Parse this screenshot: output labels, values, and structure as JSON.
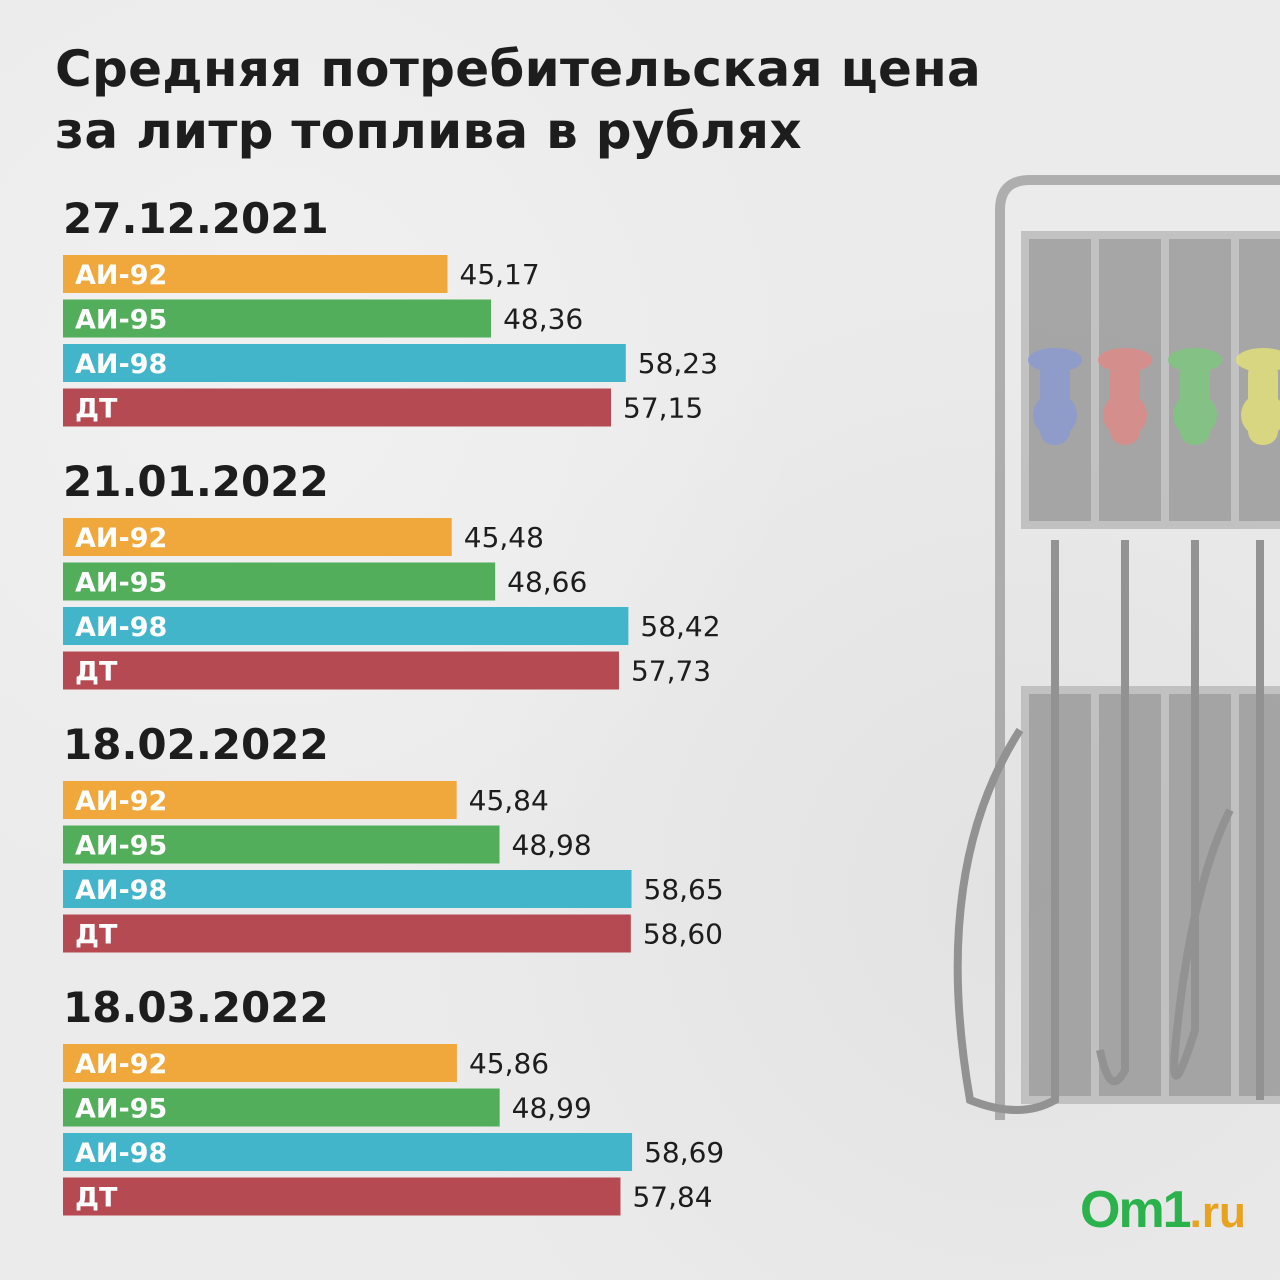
{
  "title_lines": [
    "Средняя потребительская цена",
    "за литр топлива в рублях"
  ],
  "logo": {
    "main": "Om1",
    "suffix": ".ru"
  },
  "colors": {
    "AI-92": "#f0a83c",
    "AI-95": "#52ae5a",
    "AI-98": "#43b5cb",
    "DT": "#b54a52"
  },
  "chart_data": {
    "type": "bar",
    "orientation": "horizontal",
    "title": "Средняя потребительская цена за литр топлива в рублях",
    "categories": [
      "АИ-92",
      "АИ-95",
      "АИ-98",
      "ДТ"
    ],
    "groups": [
      {
        "date": "27.12.2021",
        "values": [
          45.17,
          48.36,
          58.23,
          57.15
        ],
        "labels": [
          "45,17",
          "48,36",
          "58,23",
          "57,15"
        ]
      },
      {
        "date": "21.01.2022",
        "values": [
          45.48,
          48.66,
          58.42,
          57.73
        ],
        "labels": [
          "45,48",
          "48,66",
          "58,42",
          "57,73"
        ]
      },
      {
        "date": "18.02.2022",
        "values": [
          45.84,
          48.98,
          58.65,
          58.6
        ],
        "labels": [
          "45,84",
          "48,98",
          "58,65",
          "58,60"
        ]
      },
      {
        "date": "18.03.2022",
        "values": [
          45.86,
          48.99,
          58.69,
          57.84
        ],
        "labels": [
          "45,86",
          "48,99",
          "58,69",
          "57,84"
        ]
      }
    ]
  }
}
